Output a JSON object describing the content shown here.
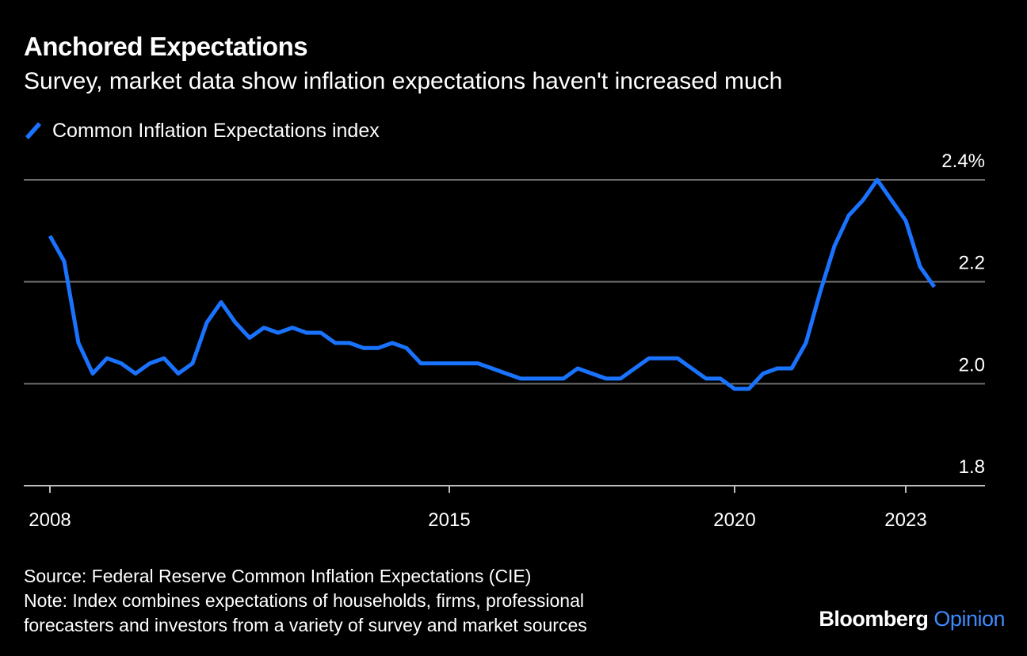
{
  "header": {
    "title": "Anchored Expectations",
    "subtitle": "Survey, market data show inflation expectations haven't increased much"
  },
  "legend": {
    "label": "Common Inflation Expectations index",
    "color": "#1a73ff"
  },
  "footer": {
    "source": "Source: Federal Reserve Common Inflation Expectations (CIE)",
    "note_line1": "Note: Index combines expectations of households, firms, professional",
    "note_line2": "forecasters and investors from a variety of survey and market sources"
  },
  "brand": {
    "name": "Bloomberg",
    "suffix": "Opinion"
  },
  "chart_data": {
    "type": "line",
    "series": [
      {
        "name": "Common Inflation Expectations index",
        "color": "#1a73ff",
        "points": [
          [
            2008.0,
            2.29
          ],
          [
            2008.25,
            2.24
          ],
          [
            2008.5,
            2.08
          ],
          [
            2008.75,
            2.02
          ],
          [
            2009.0,
            2.05
          ],
          [
            2009.25,
            2.04
          ],
          [
            2009.5,
            2.02
          ],
          [
            2009.75,
            2.04
          ],
          [
            2010.0,
            2.05
          ],
          [
            2010.25,
            2.02
          ],
          [
            2010.5,
            2.04
          ],
          [
            2010.75,
            2.12
          ],
          [
            2011.0,
            2.16
          ],
          [
            2011.25,
            2.12
          ],
          [
            2011.5,
            2.09
          ],
          [
            2011.75,
            2.11
          ],
          [
            2012.0,
            2.1
          ],
          [
            2012.25,
            2.11
          ],
          [
            2012.5,
            2.1
          ],
          [
            2012.75,
            2.1
          ],
          [
            2013.0,
            2.08
          ],
          [
            2013.25,
            2.08
          ],
          [
            2013.5,
            2.07
          ],
          [
            2013.75,
            2.07
          ],
          [
            2014.0,
            2.08
          ],
          [
            2014.25,
            2.07
          ],
          [
            2014.5,
            2.04
          ],
          [
            2014.75,
            2.04
          ],
          [
            2015.5,
            2.04
          ],
          [
            2015.75,
            2.03
          ],
          [
            2016.0,
            2.02
          ],
          [
            2016.25,
            2.01
          ],
          [
            2016.5,
            2.01
          ],
          [
            2016.75,
            2.01
          ],
          [
            2017.0,
            2.01
          ],
          [
            2017.25,
            2.03
          ],
          [
            2017.5,
            2.02
          ],
          [
            2017.75,
            2.01
          ],
          [
            2018.0,
            2.01
          ],
          [
            2018.25,
            2.03
          ],
          [
            2018.5,
            2.05
          ],
          [
            2018.75,
            2.05
          ],
          [
            2019.0,
            2.05
          ],
          [
            2019.25,
            2.03
          ],
          [
            2019.5,
            2.01
          ],
          [
            2019.75,
            2.01
          ],
          [
            2020.0,
            1.99
          ],
          [
            2020.25,
            1.99
          ],
          [
            2020.5,
            2.02
          ],
          [
            2020.75,
            2.03
          ],
          [
            2021.0,
            2.03
          ],
          [
            2021.25,
            2.08
          ],
          [
            2021.5,
            2.18
          ],
          [
            2021.75,
            2.27
          ],
          [
            2022.0,
            2.33
          ],
          [
            2022.25,
            2.36
          ],
          [
            2022.5,
            2.4
          ],
          [
            2022.75,
            2.36
          ],
          [
            2023.0,
            2.32
          ],
          [
            2023.25,
            2.23
          ],
          [
            2023.5,
            2.19
          ]
        ]
      }
    ],
    "x_ticks": [
      {
        "value": 2008,
        "label": "2008"
      },
      {
        "value": 2015,
        "label": "2015"
      },
      {
        "value": 2020,
        "label": "2020"
      },
      {
        "value": 2023,
        "label": "2023"
      }
    ],
    "y_ticks": [
      {
        "value": 2.4,
        "label": "2.4%"
      },
      {
        "value": 2.2,
        "label": "2.2"
      },
      {
        "value": 2.0,
        "label": "2.0"
      },
      {
        "value": 1.8,
        "label": "1.8"
      }
    ],
    "xlim": [
      2008,
      2023
    ],
    "ylim": [
      1.8,
      2.4
    ],
    "grid": true,
    "legend_position": "top-left"
  }
}
